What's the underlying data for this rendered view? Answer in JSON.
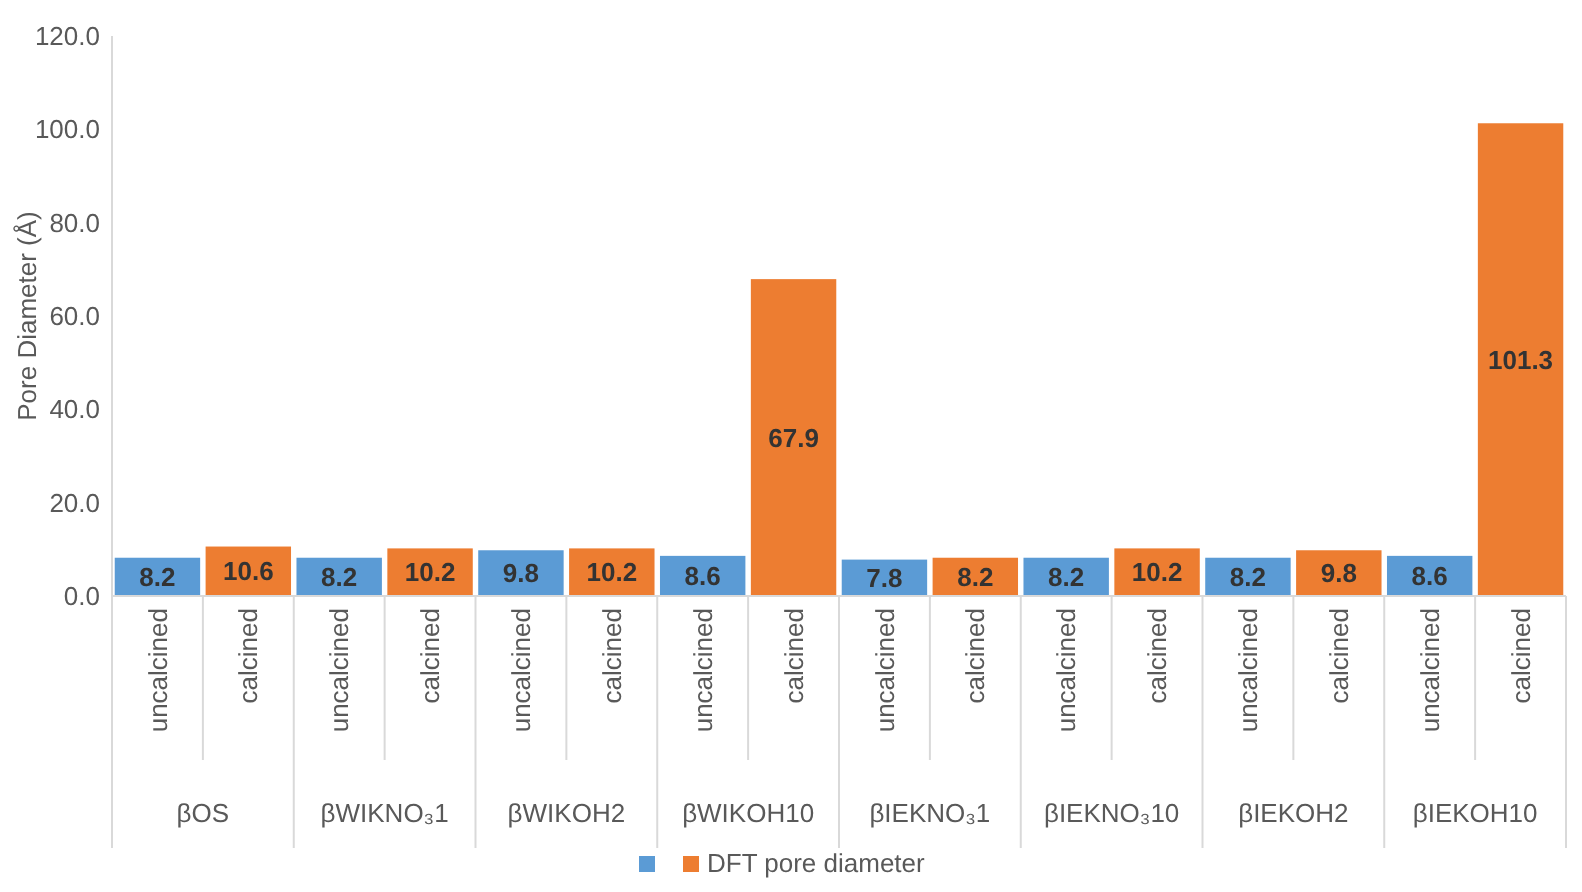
{
  "chart_data": {
    "type": "bar",
    "ylabel": "Pore Diameter (Å)",
    "categories": [
      "uncalcined",
      "calcined",
      "uncalcined",
      "calcined",
      "uncalcined",
      "calcined",
      "uncalcined",
      "calcined",
      "uncalcined",
      "calcined",
      "uncalcined",
      "calcined",
      "uncalcined",
      "calcined",
      "uncalcined",
      "calcined"
    ],
    "annotations": [
      "βOS",
      "βWIKNO₃1",
      "βWIKOH2",
      "βWIKOH10",
      "βIEKNO₃1",
      "βIEKNO₃10",
      "βIEKOH2",
      "βIEKOH10"
    ],
    "series": [
      {
        "color": "#5b9bd5",
        "values": [
          8.2,
          null,
          8.2,
          null,
          9.8,
          null,
          8.6,
          null,
          7.8,
          null,
          8.2,
          null,
          8.2,
          null,
          8.6,
          null
        ]
      },
      {
        "name": "DFT pore diameter",
        "color": "#ed7d31",
        "values": [
          null,
          10.6,
          null,
          10.2,
          null,
          10.2,
          null,
          67.9,
          null,
          8.2,
          null,
          10.2,
          null,
          9.8,
          null,
          101.3
        ]
      }
    ],
    "ylim": [
      0,
      120
    ],
    "yticks": [
      {
        "value": 0,
        "label": "0.0"
      },
      {
        "value": 20,
        "label": "20.0"
      },
      {
        "value": 40,
        "label": "40.0"
      },
      {
        "value": 60,
        "label": "60.0"
      },
      {
        "value": 80,
        "label": "80.0"
      },
      {
        "value": 100,
        "label": "100.0"
      },
      {
        "value": 120,
        "label": "120.0"
      }
    ],
    "data_labels": true,
    "legend": "bottom"
  }
}
